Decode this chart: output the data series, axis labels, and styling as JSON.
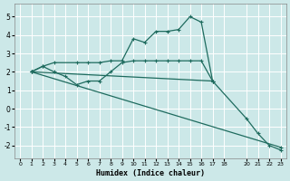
{
  "xlabel": "Humidex (Indice chaleur)",
  "bg_color": "#cce8e8",
  "line_color": "#1e6b5e",
  "grid_color": "#ffffff",
  "xlim": [
    -0.5,
    23.5
  ],
  "ylim": [
    -2.7,
    5.7
  ],
  "yticks": [
    -2,
    -1,
    0,
    1,
    2,
    3,
    4,
    5
  ],
  "xticks": [
    0,
    1,
    2,
    3,
    4,
    5,
    6,
    7,
    8,
    9,
    10,
    11,
    12,
    13,
    14,
    15,
    16,
    17,
    18,
    20,
    21,
    22,
    23
  ],
  "series": [
    {
      "x": [
        1,
        2,
        3,
        5,
        6,
        7,
        8,
        9,
        10,
        11,
        12,
        13,
        14,
        15,
        16,
        17
      ],
      "y": [
        2.0,
        2.3,
        2.5,
        2.5,
        2.5,
        2.5,
        2.6,
        2.6,
        3.8,
        3.6,
        4.2,
        4.2,
        4.3,
        5.0,
        4.7,
        1.5
      ]
    },
    {
      "x": [
        1,
        2,
        3,
        4,
        5,
        6,
        7,
        8,
        9,
        10,
        11,
        12,
        13,
        14,
        15,
        16,
        17
      ],
      "y": [
        2.0,
        2.3,
        2.0,
        1.75,
        1.3,
        1.5,
        1.5,
        2.0,
        2.5,
        2.6,
        2.6,
        2.6,
        2.6,
        2.6,
        2.6,
        2.6,
        1.5
      ]
    },
    {
      "x": [
        1,
        23
      ],
      "y": [
        2.0,
        -2.1
      ]
    },
    {
      "x": [
        1,
        17,
        20,
        21,
        22,
        23
      ],
      "y": [
        2.0,
        1.5,
        -0.55,
        -1.35,
        -2.0,
        -2.25
      ]
    }
  ]
}
